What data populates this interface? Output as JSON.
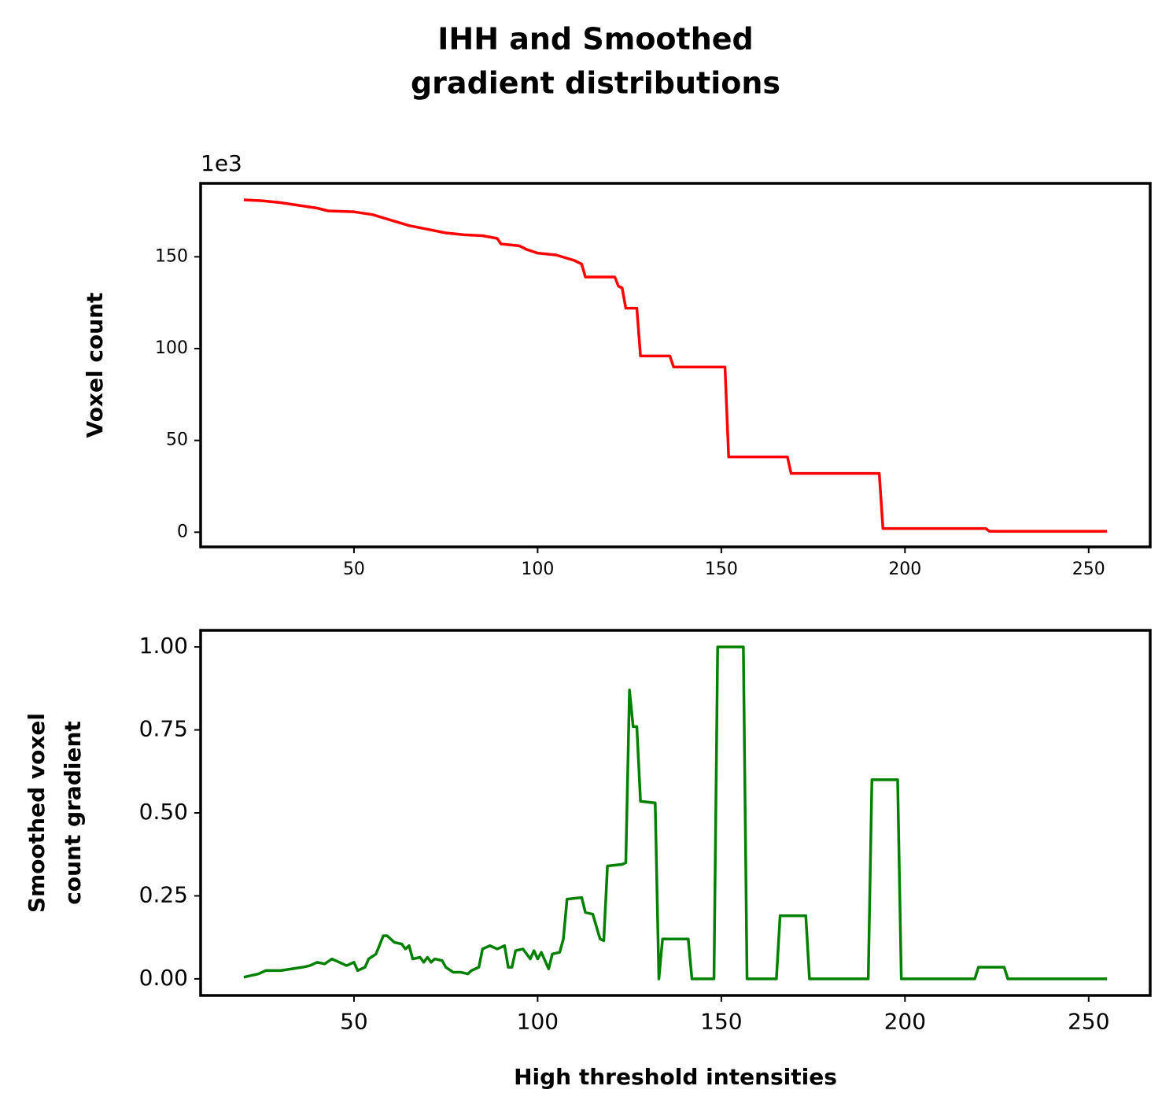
{
  "title": [
    "IHH and Smoothed",
    "gradient distributions"
  ],
  "chart_data": [
    {
      "type": "line",
      "ylabel": "Voxel count",
      "y_offset_label": "1e3",
      "x": [
        20,
        25,
        30,
        35,
        40,
        43,
        50,
        55,
        60,
        65,
        70,
        75,
        80,
        85,
        89,
        90,
        95,
        97,
        100,
        105,
        110,
        112,
        113,
        121,
        122,
        123,
        124,
        127,
        128,
        136,
        137,
        151,
        152,
        168,
        169,
        193,
        194,
        222,
        223,
        255
      ],
      "values": [
        181,
        180.5,
        179.5,
        178,
        176.5,
        175,
        174.5,
        173,
        170,
        167,
        165,
        163,
        162,
        161.5,
        160,
        157,
        156,
        154,
        152,
        151,
        148,
        146,
        139,
        139,
        134,
        133,
        122,
        122,
        96,
        96,
        90,
        90,
        41,
        41,
        32,
        32,
        2,
        2,
        0.5,
        0.5
      ],
      "color": "#ff0000",
      "xlim": [
        8.25,
        266.75
      ],
      "ylim": [
        -8,
        190
      ],
      "xticks": [
        50,
        100,
        150,
        200,
        250
      ],
      "yticks": [
        0,
        50,
        100,
        150
      ]
    },
    {
      "type": "line",
      "ylabel": [
        "Smoothed voxel",
        "count gradient"
      ],
      "xlabel": "High threshold intensities",
      "x": [
        20,
        24,
        26,
        30,
        33,
        36,
        38,
        40,
        42,
        44,
        46,
        48,
        50,
        51,
        53,
        54,
        56,
        58,
        59,
        61,
        63,
        64,
        65,
        66,
        68,
        69,
        70,
        71,
        72,
        74,
        75,
        77,
        79,
        81,
        82,
        84,
        85,
        87,
        89,
        91,
        92,
        93,
        94,
        96,
        98,
        99,
        100,
        101,
        103,
        104,
        106,
        107,
        108,
        112,
        113,
        115,
        117,
        118,
        119,
        123,
        124,
        125,
        126,
        127,
        128,
        132,
        133,
        134,
        141,
        142,
        148,
        149,
        156,
        157,
        165,
        166,
        173,
        174,
        190,
        191,
        198,
        199,
        219,
        220,
        227,
        228,
        255
      ],
      "values": [
        0.005,
        0.015,
        0.025,
        0.025,
        0.03,
        0.035,
        0.04,
        0.05,
        0.045,
        0.06,
        0.05,
        0.04,
        0.05,
        0.025,
        0.035,
        0.06,
        0.075,
        0.13,
        0.13,
        0.11,
        0.105,
        0.09,
        0.1,
        0.06,
        0.065,
        0.05,
        0.065,
        0.05,
        0.06,
        0.055,
        0.035,
        0.02,
        0.02,
        0.015,
        0.025,
        0.035,
        0.09,
        0.1,
        0.09,
        0.1,
        0.035,
        0.035,
        0.085,
        0.09,
        0.06,
        0.085,
        0.06,
        0.08,
        0.03,
        0.075,
        0.08,
        0.12,
        0.24,
        0.245,
        0.2,
        0.195,
        0.12,
        0.115,
        0.34,
        0.345,
        0.35,
        0.87,
        0.76,
        0.76,
        0.535,
        0.53,
        0,
        0.12,
        0.12,
        0,
        0,
        1,
        1,
        0,
        0,
        0.19,
        0.19,
        0,
        0,
        0.6,
        0.6,
        0,
        0,
        0.035,
        0.035,
        0,
        0
      ],
      "color": "#008000",
      "xlim": [
        8.25,
        266.75
      ],
      "ylim": [
        -0.05,
        1.05
      ],
      "xticks": [
        50,
        100,
        150,
        200,
        250
      ],
      "yticks": [
        {
          "value": 0,
          "label": "0.00"
        },
        {
          "value": 0.25,
          "label": "0.25"
        },
        {
          "value": 0.5,
          "label": "0.50"
        },
        {
          "value": 0.75,
          "label": "0.75"
        },
        {
          "value": 1,
          "label": "1.00"
        }
      ]
    }
  ]
}
